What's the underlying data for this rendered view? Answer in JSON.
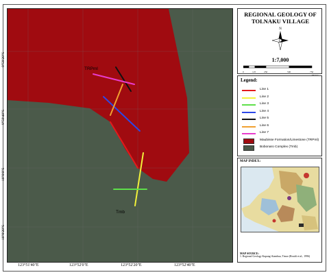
{
  "map": {
    "colors": {
      "tr_pml": "#a00b10",
      "tmb": "#4b5a4a"
    },
    "unit_labels": {
      "tr_pml": "TRPml",
      "tmb": "Tmb"
    },
    "lon_labels": [
      "123°51'40\"E",
      "123°52'0\"E",
      "123°52'20\"E",
      "123°52'40\"E"
    ],
    "lat_labels": [
      "9°59'20\"S",
      "9°59'40\"S",
      "10°0'0\"S",
      "10°0'20\"S"
    ],
    "lines": [
      {
        "name": "Line 1",
        "color": "#e31a1c"
      },
      {
        "name": "Line 2",
        "color": "#f2f23a"
      },
      {
        "name": "Line 3",
        "color": "#5ee04a"
      },
      {
        "name": "Line 4",
        "color": "#2c47e8"
      },
      {
        "name": "Line 5",
        "color": "#111111"
      },
      {
        "name": "Line 6",
        "color": "#f0a030"
      },
      {
        "name": "Line 7",
        "color": "#e83ccd"
      }
    ]
  },
  "title": {
    "line1": "REGIONAL GEOLOGY OF",
    "line2": "TOLNAKU VILLAGE",
    "north_label": "N",
    "scale_ratio": "1:7,000",
    "scale_ticks": [
      "0",
      "125",
      "250",
      "500",
      "750"
    ],
    "scale_unit": "Meters"
  },
  "legend": {
    "title": "Legend:",
    "units": [
      {
        "label": "Maubisse Formation/Limestone (TRPml)",
        "color": "#a00b10"
      },
      {
        "label": "Bobonaro Complex (Tmb)",
        "color": "#4b5a4a"
      }
    ]
  },
  "index": {
    "title": "MAP INDEX:",
    "source_title": "MAP SOURCE:",
    "source_text": "1. Regional Geology Kupang-Atambua, Timor (Rosidi et al., 1996)"
  }
}
